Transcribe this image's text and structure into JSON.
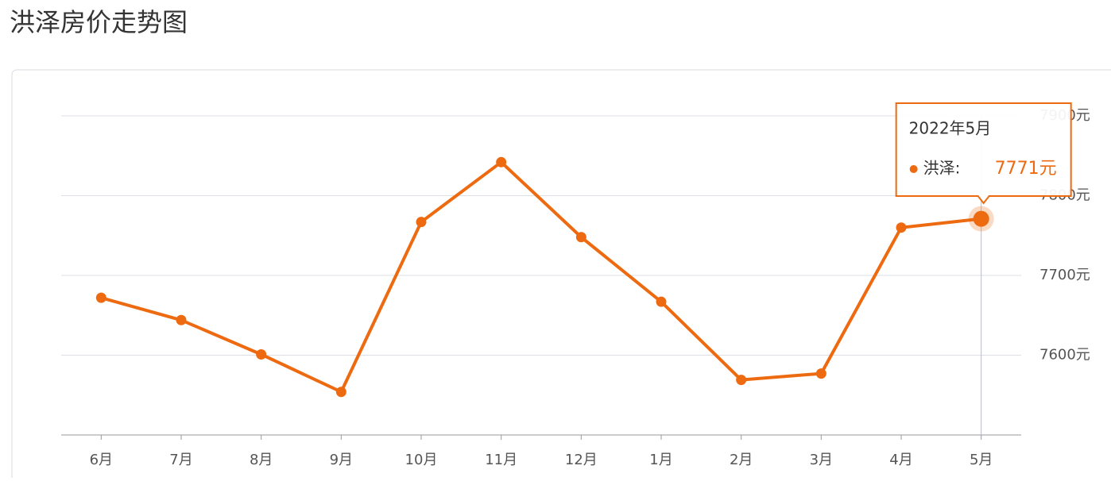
{
  "chart_data": {
    "type": "line",
    "title": "洪泽房价走势图",
    "categories": [
      "6月",
      "7月",
      "8月",
      "9月",
      "10月",
      "11月",
      "12月",
      "1月",
      "2月",
      "3月",
      "4月",
      "5月"
    ],
    "series": [
      {
        "color": "#ee6a10",
        "values": [
          7672,
          7644,
          7601,
          7554,
          7767,
          7842,
          7748,
          7667,
          7569,
          7577,
          7760,
          7771
        ],
        "value_labels": [
          null,
          null,
          null,
          null,
          null,
          null,
          null,
          null,
          null,
          null,
          null,
          "7771元"
        ]
      }
    ],
    "ylim": [
      7500,
      7900
    ],
    "yticks": [
      {
        "value": 7600,
        "label": "7600元"
      },
      {
        "value": 7700,
        "label": "7700元"
      },
      {
        "value": 7800,
        "label": "7800元"
      },
      {
        "value": 7900,
        "label": "7900元"
      }
    ],
    "grid": true,
    "tooltip": {
      "title": "2022年5月",
      "series_label": "洪泽:"
    }
  }
}
